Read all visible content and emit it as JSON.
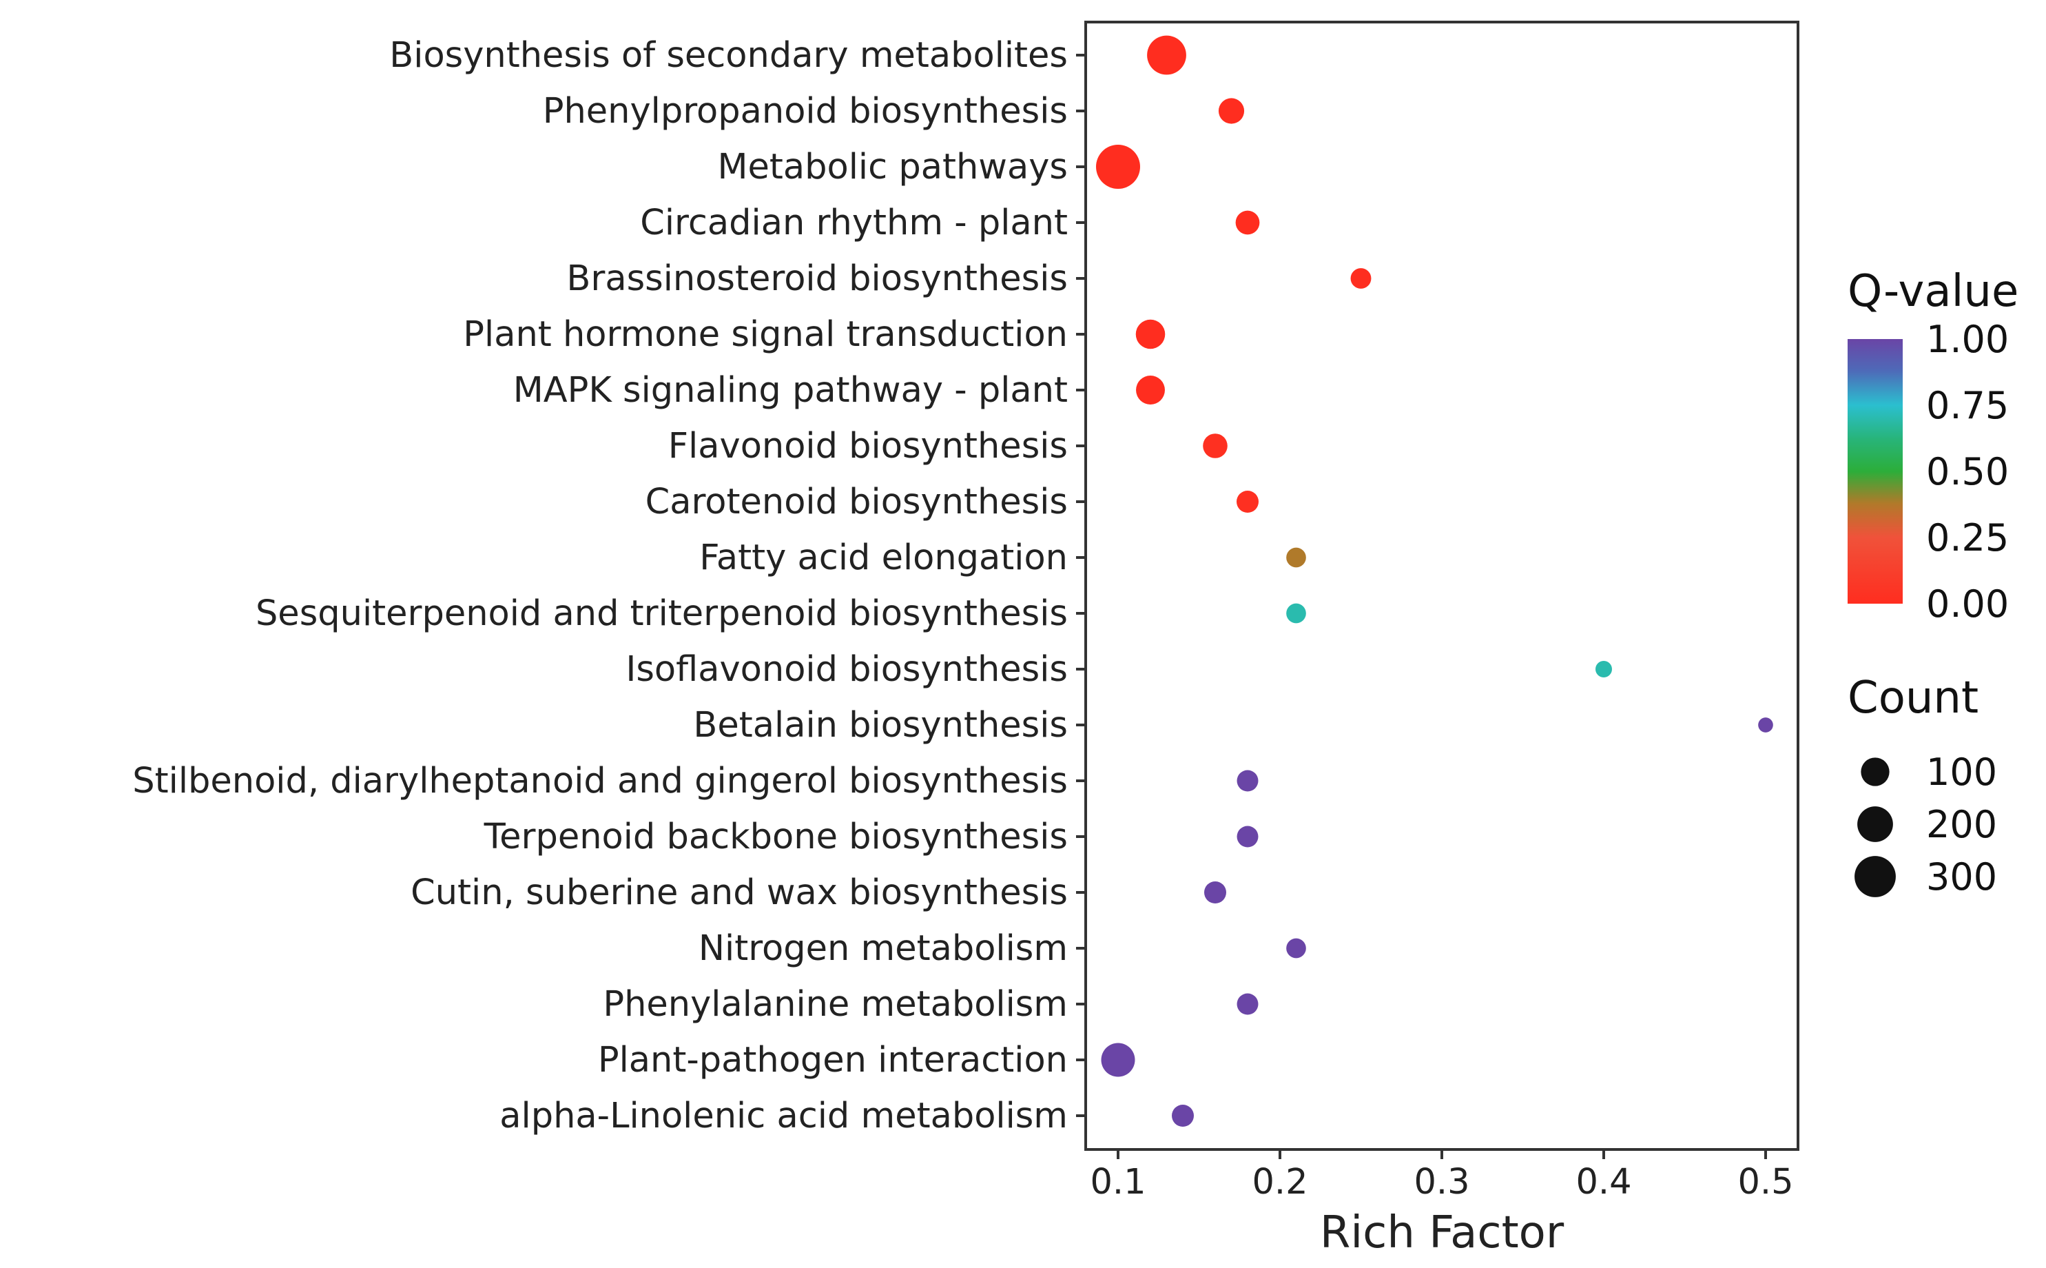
{
  "chart_data": {
    "type": "scatter",
    "title": "",
    "xlabel": "Rich Factor",
    "ylabel": "",
    "xlim": [
      0.08,
      0.52
    ],
    "xticks": [
      0.1,
      0.2,
      0.3,
      0.4,
      0.5
    ],
    "xtick_labels": [
      "0.1",
      "0.2",
      "0.3",
      "0.4",
      "0.5"
    ],
    "grid": false,
    "legend_position": "right",
    "points": [
      {
        "pathway": "Biosynthesis of secondary metabolites",
        "rich_factor": 0.13,
        "count": 260,
        "q_value": 0.0
      },
      {
        "pathway": "Phenylpropanoid biosynthesis",
        "rich_factor": 0.17,
        "count": 70,
        "q_value": 0.0
      },
      {
        "pathway": "Metabolic pathways",
        "rich_factor": 0.1,
        "count": 360,
        "q_value": 0.0
      },
      {
        "pathway": "Circadian rhythm - plant",
        "rich_factor": 0.18,
        "count": 55,
        "q_value": 0.0
      },
      {
        "pathway": "Brassinosteroid biosynthesis",
        "rich_factor": 0.25,
        "count": 30,
        "q_value": 0.01
      },
      {
        "pathway": "Plant hormone signal transduction",
        "rich_factor": 0.12,
        "count": 110,
        "q_value": 0.0
      },
      {
        "pathway": "MAPK signaling pathway - plant",
        "rich_factor": 0.12,
        "count": 105,
        "q_value": 0.0
      },
      {
        "pathway": "Flavonoid biosynthesis",
        "rich_factor": 0.16,
        "count": 60,
        "q_value": 0.02
      },
      {
        "pathway": "Carotenoid biosynthesis",
        "rich_factor": 0.18,
        "count": 40,
        "q_value": 0.02
      },
      {
        "pathway": "Fatty acid elongation",
        "rich_factor": 0.21,
        "count": 25,
        "q_value": 0.38
      },
      {
        "pathway": "Sesquiterpenoid and triterpenoid biosynthesis",
        "rich_factor": 0.21,
        "count": 25,
        "q_value": 0.7
      },
      {
        "pathway": "Isoflavonoid biosynthesis",
        "rich_factor": 0.4,
        "count": 10,
        "q_value": 0.7
      },
      {
        "pathway": "Betalain biosynthesis",
        "rich_factor": 0.5,
        "count": 5,
        "q_value": 1.0
      },
      {
        "pathway": "Stilbenoid, diarylheptanoid and gingerol biosynthesis",
        "rich_factor": 0.18,
        "count": 35,
        "q_value": 1.0
      },
      {
        "pathway": "Terpenoid backbone biosynthesis",
        "rich_factor": 0.18,
        "count": 35,
        "q_value": 1.0
      },
      {
        "pathway": "Cutin, suberine and wax biosynthesis",
        "rich_factor": 0.16,
        "count": 40,
        "q_value": 1.0
      },
      {
        "pathway": "Nitrogen metabolism",
        "rich_factor": 0.21,
        "count": 25,
        "q_value": 1.0
      },
      {
        "pathway": "Phenylalanine metabolism",
        "rich_factor": 0.18,
        "count": 35,
        "q_value": 1.0
      },
      {
        "pathway": "Plant-pathogen interaction",
        "rich_factor": 0.1,
        "count": 170,
        "q_value": 1.0
      },
      {
        "pathway": "alpha-Linolenic acid metabolism",
        "rich_factor": 0.14,
        "count": 40,
        "q_value": 1.0
      }
    ],
    "color_legend": {
      "title": "Q-value",
      "ticks": [
        1.0,
        0.75,
        0.5,
        0.25,
        0.0
      ],
      "tick_labels": [
        "1.00",
        "0.75",
        "0.50",
        "0.25",
        "0.00"
      ],
      "stops": [
        {
          "value": 1.0,
          "color": "#6a45a6"
        },
        {
          "value": 0.88,
          "color": "#4e6ab8"
        },
        {
          "value": 0.75,
          "color": "#2bbfcf"
        },
        {
          "value": 0.62,
          "color": "#28b478"
        },
        {
          "value": 0.5,
          "color": "#2cae3a"
        },
        {
          "value": 0.38,
          "color": "#b07a2a"
        },
        {
          "value": 0.25,
          "color": "#f0523a"
        },
        {
          "value": 0.0,
          "color": "#ff2d1f"
        }
      ]
    },
    "size_legend": {
      "title": "Count",
      "values": [
        100,
        200,
        300
      ],
      "labels": [
        "100",
        "200",
        "300"
      ]
    }
  }
}
